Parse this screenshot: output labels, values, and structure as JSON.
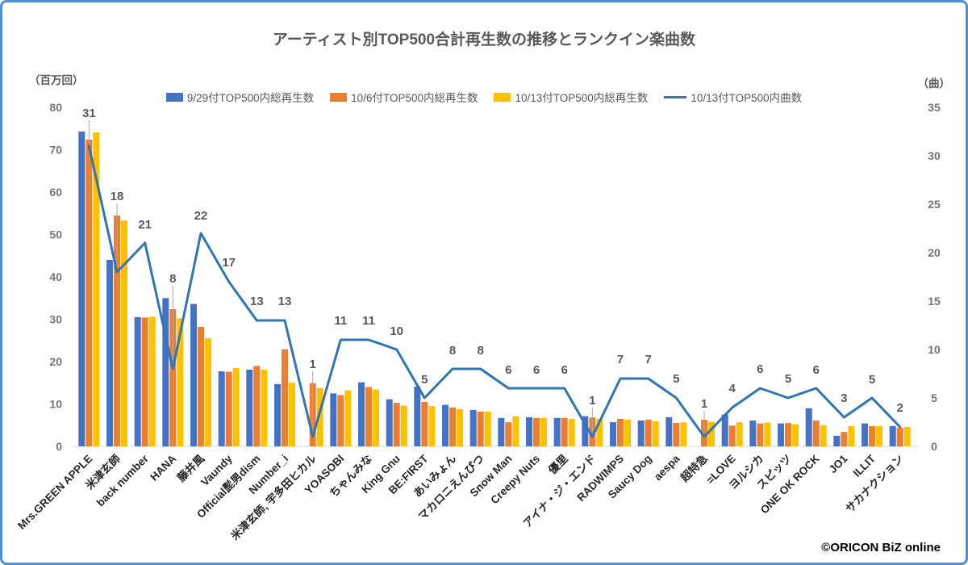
{
  "page": {
    "title": "アーティスト別TOP500合計再生数の推移とランクイン楽曲数",
    "credit": "©ORICON BiZ online",
    "border_color": "#4a90d2"
  },
  "colors": {
    "bar_blue": "#4472C4",
    "bar_orange": "#ED7D31",
    "bar_yellow": "#FFC000",
    "line_blue": "#2E75B6",
    "title_gray": "#595959",
    "tick_gray": "#757575",
    "axis_line": "#d9d9d9",
    "category_text": "#262626"
  },
  "chart_data": {
    "type": "bar",
    "subtype": "clustered-bar-with-line-combo",
    "title": "アーティスト別TOP500合計再生数の推移とランクイン楽曲数",
    "grid": false,
    "legend_position": "top",
    "categories": [
      "Mrs.GREEN APPLE",
      "米津玄師",
      "back number",
      "HANA",
      "藤井風",
      "Vaundy",
      "Official髭男dism",
      "Number_i",
      "米津玄師, 宇多田ヒカル",
      "YOASOBI",
      "ちゃんみな",
      "King Gnu",
      "BE:FIRST",
      "あいみょん",
      "マカロニえんぴつ",
      "Snow Man",
      "Creepy Nuts",
      "優里",
      "アイナ・ジ・エンド",
      "RADWIMPS",
      "Saucy Dog",
      "aespa",
      "超特急",
      "=LOVE",
      "ヨルシカ",
      "スピッツ",
      "ONE OK ROCK",
      "JO1",
      "ILLIT",
      "サカナクション"
    ],
    "left_axis": {
      "unit": "（百万回）",
      "min": 0,
      "max": 80,
      "step": 10
    },
    "right_axis": {
      "unit": "（曲）",
      "min": 0,
      "max": 35,
      "step": 5
    },
    "series": [
      {
        "name": "9/29付TOP500内総再生数",
        "type": "bar",
        "axis": "left",
        "color": "#4472C4",
        "values": [
          74.3,
          44.0,
          30.5,
          35.0,
          33.6,
          17.7,
          18.1,
          14.7,
          0,
          12.5,
          15.1,
          11.1,
          14.1,
          9.8,
          8.6,
          6.7,
          6.9,
          6.7,
          7.1,
          5.7,
          6.1,
          6.9,
          0,
          7.5,
          6.1,
          5.4,
          9.0,
          2.5,
          5.4,
          4.8
        ]
      },
      {
        "name": "10/6付TOP500内総再生数",
        "type": "bar",
        "axis": "left",
        "color": "#ED7D31",
        "values": [
          72.4,
          54.5,
          30.4,
          32.4,
          28.2,
          17.6,
          19.0,
          22.9,
          14.9,
          12.1,
          14.0,
          10.3,
          10.5,
          9.2,
          8.2,
          5.7,
          6.7,
          6.7,
          6.8,
          6.5,
          6.3,
          5.5,
          6.3,
          4.9,
          5.4,
          5.5,
          6.1,
          3.4,
          4.8,
          4.4
        ]
      },
      {
        "name": "10/13付TOP500内総再生数",
        "type": "bar",
        "axis": "left",
        "color": "#FFC000",
        "values": [
          74.1,
          53.3,
          30.6,
          30.2,
          25.5,
          18.5,
          18.1,
          15.0,
          13.8,
          13.2,
          13.4,
          9.6,
          9.5,
          8.8,
          8.2,
          7.1,
          6.7,
          6.5,
          6.5,
          6.3,
          5.9,
          5.7,
          5.8,
          5.7,
          5.6,
          5.2,
          5.0,
          4.8,
          4.8,
          4.6
        ]
      },
      {
        "name": "10/13付TOP500内曲数",
        "type": "line",
        "axis": "right",
        "color": "#2E75B6",
        "data_labels": true,
        "values": [
          31,
          18,
          21,
          8,
          22,
          17,
          13,
          13,
          1,
          11,
          11,
          10,
          5,
          8,
          8,
          6,
          6,
          6,
          1,
          7,
          7,
          5,
          1,
          4,
          6,
          5,
          6,
          3,
          5,
          2
        ]
      }
    ],
    "label_offsets": [
      36,
      89,
      18,
      107,
      17,
      19,
      19,
      19,
      85,
      19,
      19,
      18,
      18,
      18,
      18,
      18,
      18,
      18,
      40,
      19,
      19,
      19,
      36,
      19,
      19,
      19,
      18,
      19,
      18,
      19
    ]
  }
}
